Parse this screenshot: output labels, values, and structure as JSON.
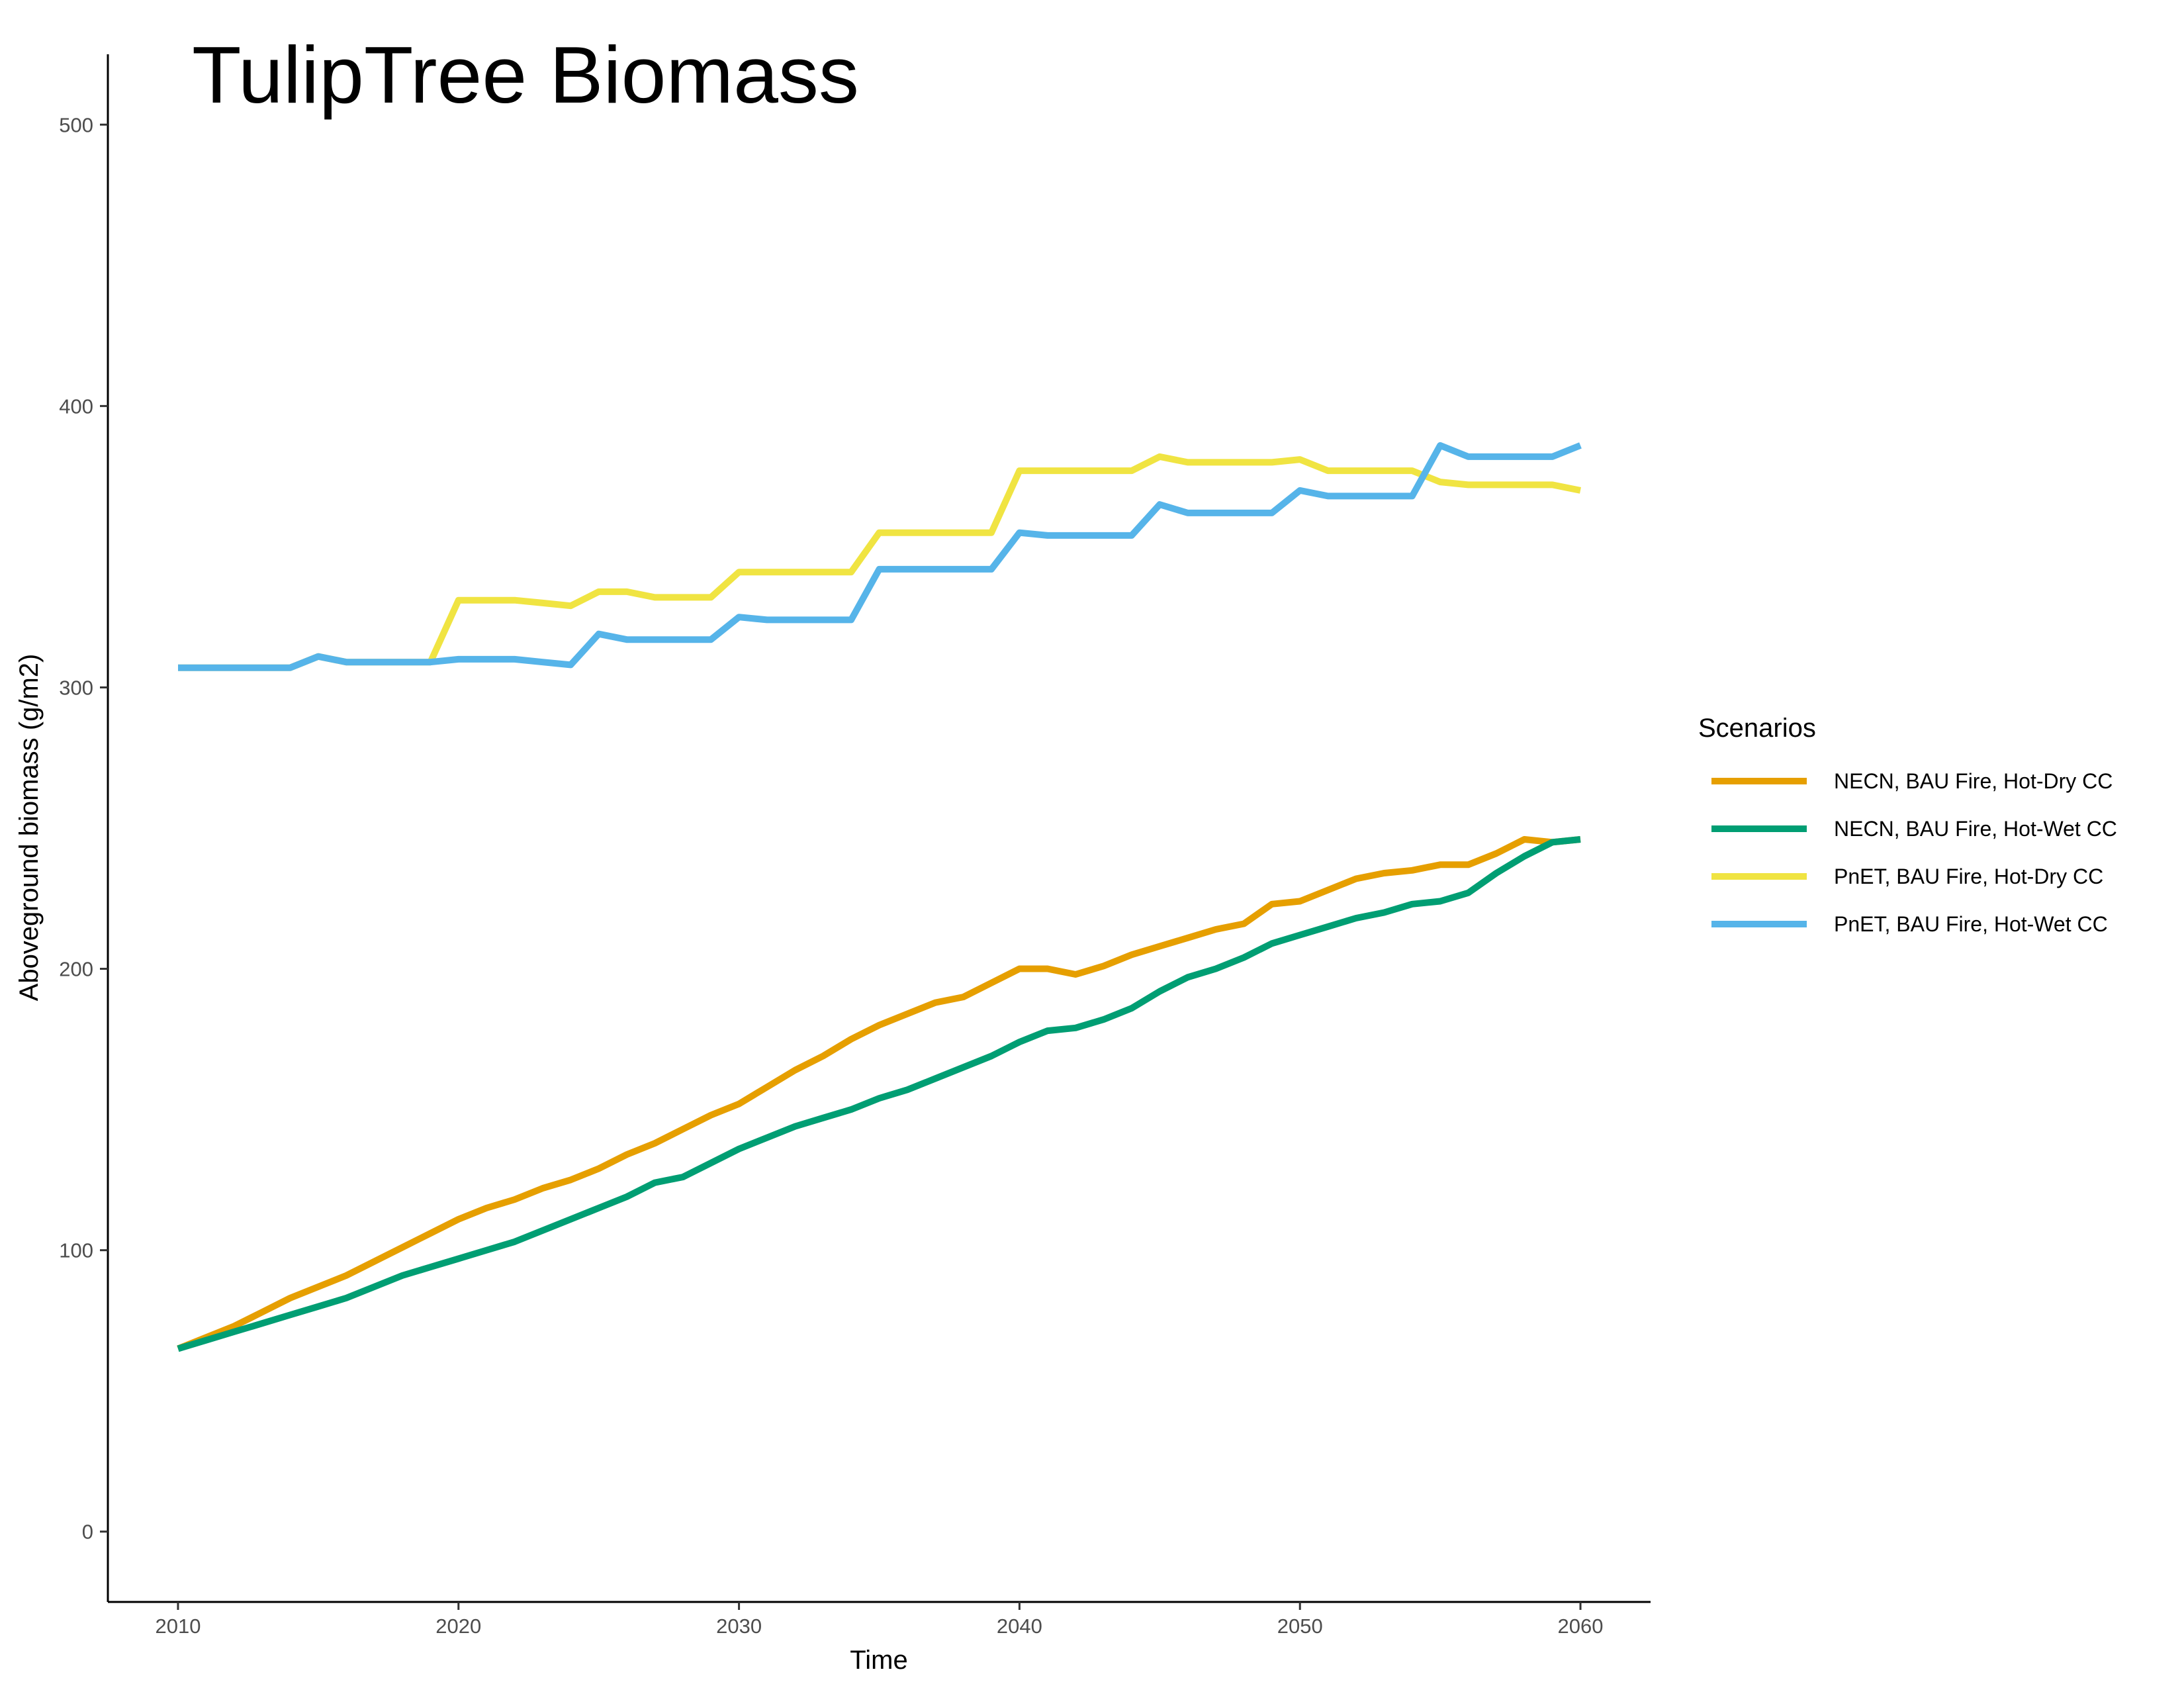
{
  "chart_data": {
    "type": "line",
    "title": "TulipTree Biomass",
    "xlabel": "Time",
    "ylabel": "Aboveground biomass (g/m2)",
    "xlim": [
      2007.5,
      2062.5
    ],
    "ylim": [
      -25,
      525
    ],
    "x_ticks": [
      2010,
      2020,
      2030,
      2040,
      2050,
      2060
    ],
    "y_ticks": [
      0,
      100,
      200,
      300,
      400,
      500
    ],
    "grid": false,
    "legend": {
      "title": "Scenarios",
      "placement": "right"
    },
    "x": [
      2010,
      2011,
      2012,
      2013,
      2014,
      2015,
      2016,
      2017,
      2018,
      2019,
      2020,
      2021,
      2022,
      2023,
      2024,
      2025,
      2026,
      2027,
      2028,
      2029,
      2030,
      2031,
      2032,
      2033,
      2034,
      2035,
      2036,
      2037,
      2038,
      2039,
      2040,
      2041,
      2042,
      2043,
      2044,
      2045,
      2046,
      2047,
      2048,
      2049,
      2050,
      2051,
      2052,
      2053,
      2054,
      2055,
      2056,
      2057,
      2058,
      2059,
      2060
    ],
    "series": [
      {
        "name": "NECN, BAU Fire, Hot-Dry CC",
        "color": "#E69F00",
        "values": [
          65,
          69,
          73,
          78,
          83,
          87,
          91,
          96,
          101,
          106,
          111,
          115,
          118,
          122,
          125,
          129,
          134,
          138,
          143,
          148,
          152,
          158,
          164,
          169,
          175,
          180,
          184,
          188,
          190,
          195,
          200,
          200,
          198,
          201,
          205,
          208,
          211,
          214,
          216,
          223,
          224,
          228,
          232,
          234,
          235,
          237,
          237,
          241,
          246,
          245,
          246
        ]
      },
      {
        "name": "NECN, BAU Fire, Hot-Wet CC",
        "color": "#009E73",
        "values": [
          65,
          68,
          71,
          74,
          77,
          80,
          83,
          87,
          91,
          94,
          97,
          100,
          103,
          107,
          111,
          115,
          119,
          124,
          126,
          131,
          136,
          140,
          144,
          147,
          150,
          154,
          157,
          161,
          165,
          169,
          174,
          178,
          179,
          182,
          186,
          192,
          197,
          200,
          204,
          209,
          212,
          215,
          218,
          220,
          223,
          224,
          227,
          234,
          240,
          245,
          246
        ]
      },
      {
        "name": "PnET, BAU Fire, Hot-Dry CC",
        "color": "#F0E442",
        "values": [
          307,
          307,
          307,
          307,
          307,
          311,
          309,
          309,
          309,
          309,
          331,
          331,
          331,
          330,
          329,
          334,
          334,
          332,
          332,
          332,
          341,
          341,
          341,
          341,
          341,
          355,
          355,
          355,
          355,
          355,
          377,
          377,
          377,
          377,
          377,
          382,
          380,
          380,
          380,
          380,
          381,
          377,
          377,
          377,
          377,
          373,
          372,
          372,
          372,
          372,
          370
        ]
      },
      {
        "name": "PnET, BAU Fire, Hot-Wet CC",
        "color": "#56B4E9",
        "values": [
          307,
          307,
          307,
          307,
          307,
          311,
          309,
          309,
          309,
          309,
          310,
          310,
          310,
          309,
          308,
          319,
          317,
          317,
          317,
          317,
          325,
          324,
          324,
          324,
          324,
          342,
          342,
          342,
          342,
          342,
          355,
          354,
          354,
          354,
          354,
          365,
          362,
          362,
          362,
          362,
          370,
          368,
          368,
          368,
          368,
          386,
          382,
          382,
          382,
          382,
          386
        ]
      }
    ]
  }
}
